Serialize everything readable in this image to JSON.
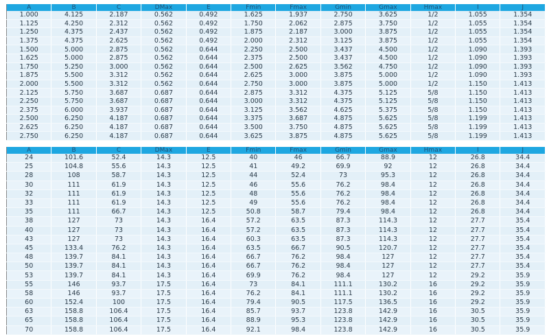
{
  "tables": [
    {
      "headers": [
        "A",
        "B",
        "C",
        "DMax",
        "E",
        "Fmin",
        "Fmax",
        "Gmin",
        "Gmax",
        "Hmax",
        "I",
        "J"
      ],
      "rows": [
        [
          "1.000",
          "4.125",
          "2.187",
          "0.562",
          "0.492",
          "1.625",
          "1.937",
          "2.750",
          "3.625",
          "1/2",
          "1.055",
          "1.354"
        ],
        [
          "1.125",
          "4.250",
          "2.312",
          "0.562",
          "0.492",
          "1.750",
          "2.062",
          "2.875",
          "3.750",
          "1/2",
          "1.055",
          "1.354"
        ],
        [
          "1.250",
          "4.375",
          "2.437",
          "0.562",
          "0.492",
          "1.875",
          "2.187",
          "3.000",
          "3.875",
          "1/2",
          "1.055",
          "1.354"
        ],
        [
          "1.375",
          "4.375",
          "2.625",
          "0.562",
          "0.492",
          "2.000",
          "2.312",
          "3.125",
          "3.875",
          "1/2",
          "1.055",
          "1.354"
        ],
        [
          "1.500",
          "5.000",
          "2.875",
          "0.562",
          "0.644",
          "2.250",
          "2.500",
          "3.437",
          "4.500",
          "1/2",
          "1.090",
          "1.393"
        ],
        [
          "1.625",
          "5.000",
          "2.875",
          "0.562",
          "0.644",
          "2.375",
          "2.500",
          "3.437",
          "4.500",
          "1/2",
          "1.090",
          "1.393"
        ],
        [
          "1.750",
          "5.250",
          "3.000",
          "0.562",
          "0.644",
          "2.500",
          "2.625",
          "3.562",
          "4.750",
          "1/2",
          "1.090",
          "1.393"
        ],
        [
          "1.875",
          "5.500",
          "3.312",
          "0.562",
          "0.644",
          "2.625",
          "3.000",
          "3.875",
          "5.000",
          "1/2",
          "1.090",
          "1.393"
        ],
        [
          "2.000",
          "5.500",
          "3.312",
          "0.562",
          "0.644",
          "2.750",
          "3.000",
          "3.875",
          "5.000",
          "1/2",
          "1.150",
          "1.413"
        ],
        [
          "2.125",
          "5.750",
          "3.687",
          "0.687",
          "0.644",
          "2.875",
          "3.312",
          "4.375",
          "5.125",
          "5/8",
          "1.150",
          "1.413"
        ],
        [
          "2.250",
          "5.750",
          "3.687",
          "0.687",
          "0.644",
          "3.000",
          "3.312",
          "4.375",
          "5.125",
          "5/8",
          "1.150",
          "1.413"
        ],
        [
          "2.375",
          "6.000",
          "3.937",
          "0.687",
          "0.644",
          "3.125",
          "3.562",
          "4.625",
          "5.375",
          "5/8",
          "1.150",
          "1.413"
        ],
        [
          "2.500",
          "6.250",
          "4.187",
          "0.687",
          "0.644",
          "3.375",
          "3.687",
          "4.875",
          "5.625",
          "5/8",
          "1.199",
          "1.413"
        ],
        [
          "2.625",
          "6.250",
          "4.187",
          "0.687",
          "0.644",
          "3.500",
          "3.750",
          "4.875",
          "5.625",
          "5/8",
          "1.199",
          "1.413"
        ],
        [
          "2.750",
          "6.250",
          "4.187",
          "0.687",
          "0.644",
          "3.625",
          "3.875",
          "4.875",
          "5.625",
          "5/8",
          "1.199",
          "1.413"
        ]
      ]
    },
    {
      "headers": [
        "A",
        "B",
        "C",
        "DMax",
        "E",
        "Fmin",
        "Fmax",
        "Gmin",
        "Gmax",
        "Hmax",
        "I",
        "J"
      ],
      "rows": [
        [
          "24",
          "101.6",
          "52.4",
          "14.3",
          "12.5",
          "40",
          "46",
          "66.7",
          "88.9",
          "12",
          "26.8",
          "34.4"
        ],
        [
          "25",
          "104.8",
          "55.6",
          "14.3",
          "12.5",
          "41",
          "49.2",
          "69.9",
          "92",
          "12",
          "26.8",
          "34.4"
        ],
        [
          "28",
          "108",
          "58.7",
          "14.3",
          "12.5",
          "44",
          "52.4",
          "73",
          "95.3",
          "12",
          "26.8",
          "34.4"
        ],
        [
          "30",
          "111",
          "61.9",
          "14.3",
          "12.5",
          "46",
          "55.6",
          "76.2",
          "98.4",
          "12",
          "26.8",
          "34.4"
        ],
        [
          "32",
          "111",
          "61.9",
          "14.3",
          "12.5",
          "48",
          "55.6",
          "76.2",
          "98.4",
          "12",
          "26.8",
          "34.4"
        ],
        [
          "33",
          "111",
          "61.9",
          "14.3",
          "12.5",
          "49",
          "55.6",
          "76.2",
          "98.4",
          "12",
          "26.8",
          "34.4"
        ],
        [
          "35",
          "111",
          "66.7",
          "14.3",
          "12.5",
          "50.8",
          "58.7",
          "79.4",
          "98.4",
          "12",
          "26.8",
          "34.4"
        ],
        [
          "38",
          "127",
          "73",
          "14.3",
          "16.4",
          "57.2",
          "63.5",
          "87.3",
          "114.3",
          "12",
          "27.7",
          "35.4"
        ],
        [
          "40",
          "127",
          "73",
          "14.3",
          "16.4",
          "57.2",
          "63.5",
          "87.3",
          "114.3",
          "12",
          "27.7",
          "35.4"
        ],
        [
          "43",
          "127",
          "73",
          "14.3",
          "16.4",
          "60.3",
          "63.5",
          "87.3",
          "114.3",
          "12",
          "27.7",
          "35.4"
        ],
        [
          "45",
          "133.4",
          "76.2",
          "14.3",
          "16.4",
          "63.5",
          "66.7",
          "90.5",
          "120.7",
          "12",
          "27.7",
          "35.4"
        ],
        [
          "48",
          "139.7",
          "84.1",
          "14.3",
          "16.4",
          "66.7",
          "76.2",
          "98.4",
          "127",
          "12",
          "27.7",
          "35.4"
        ],
        [
          "50",
          "139.7",
          "84.1",
          "14.3",
          "16.4",
          "66.7",
          "76.2",
          "98.4",
          "127",
          "12",
          "27.7",
          "35.4"
        ],
        [
          "53",
          "139.7",
          "84.1",
          "14.3",
          "16.4",
          "69.9",
          "76.2",
          "98.4",
          "127",
          "12",
          "29.2",
          "35.9"
        ],
        [
          "55",
          "146",
          "93.7",
          "17.5",
          "16.4",
          "73",
          "84.1",
          "111.1",
          "130.2",
          "16",
          "29.2",
          "35.9"
        ],
        [
          "58",
          "146",
          "93.7",
          "17.5",
          "16.4",
          "76.2",
          "84.1",
          "111.1",
          "130.2",
          "16",
          "29.2",
          "35.9"
        ],
        [
          "60",
          "152.4",
          "100",
          "17.5",
          "16.4",
          "79.4",
          "90.5",
          "117.5",
          "136.5",
          "16",
          "29.2",
          "35.9"
        ],
        [
          "63",
          "158.8",
          "106.4",
          "17.5",
          "16.4",
          "85.7",
          "93.7",
          "123.8",
          "142.9",
          "16",
          "30.5",
          "35.9"
        ],
        [
          "65",
          "158.8",
          "106.4",
          "17.5",
          "16.4",
          "88.9",
          "95.3",
          "123.8",
          "142.9",
          "16",
          "30.5",
          "35.9"
        ],
        [
          "70",
          "158.8",
          "106.4",
          "17.5",
          "16.4",
          "92.1",
          "98.4",
          "123.8",
          "142.9",
          "16",
          "30.5",
          "35.9"
        ]
      ]
    }
  ],
  "colors": {
    "header_bg": "#1ea7e1",
    "row_bg": "#e3f0f8"
  }
}
